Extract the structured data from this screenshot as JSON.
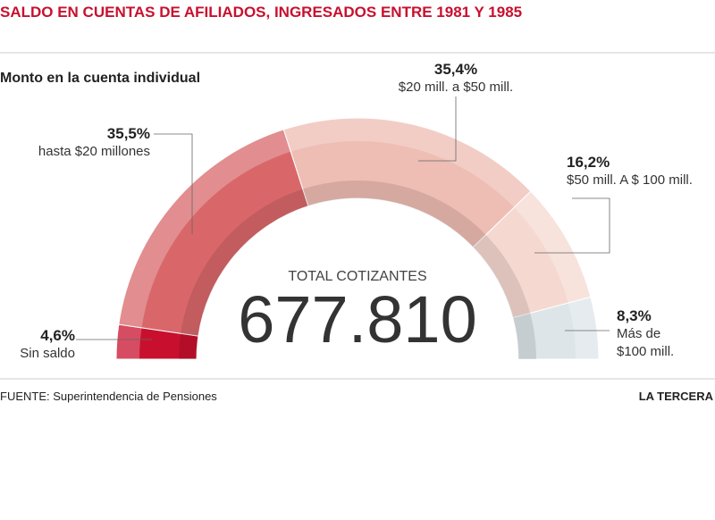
{
  "chart_data": {
    "type": "donut",
    "half": true,
    "title": "SALDO EN CUENTAS DE AFILIADOS, INGRESADOS ENTRE 1981 Y 1985",
    "subtitle": "Monto en la cuenta individual",
    "center_label": "TOTAL COTIZANTES",
    "center_value": "677.810",
    "categories": [
      "Sin saldo",
      "hasta $20 millones",
      "$20 mill. a $50 mill.",
      "$50  mill. A $ 100 mill.",
      "Más de $100 mill."
    ],
    "values": [
      4.6,
      35.5,
      35.4,
      16.2,
      8.3
    ],
    "value_labels": [
      "4,6%",
      "35,5%",
      "35,4%",
      "16,2%",
      "8,3%"
    ],
    "colors": [
      "#c8102e",
      "#d9676a",
      "#eebdb3",
      "#f5d9d1",
      "#dde5e8"
    ],
    "source": "FUENTE: Superintendencia de Pensiones",
    "brand": "LA TERCERA"
  }
}
